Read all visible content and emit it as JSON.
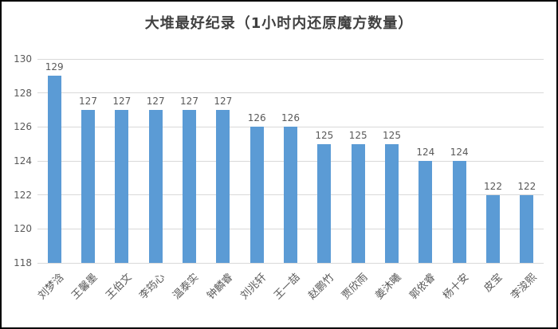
{
  "window": {
    "kind": "chart-screenshot"
  },
  "colors": {
    "bar": "#5b9bd5",
    "gridline": "#d9d9d9",
    "axis_text": "#595959",
    "title_text": "#404040",
    "frame_border": "#000000",
    "background": "#ffffff"
  },
  "chart_data": {
    "type": "bar",
    "title": "大堆最好纪录（1小时内还原魔方数量）",
    "categories": [
      "刘梦浛",
      "王馨墨",
      "王伯文",
      "李筠心",
      "温泰实",
      "钟麟睿",
      "刘兆轩",
      "王一喆",
      "赵鹏竹",
      "贾欣雨",
      "姜沐曦",
      "郭依睿",
      "杨十安",
      "皮宝",
      "李浚熙"
    ],
    "values": [
      129,
      127,
      127,
      127,
      127,
      127,
      126,
      126,
      125,
      125,
      125,
      124,
      124,
      122,
      122
    ],
    "data_labels": [
      "129",
      "127",
      "127",
      "127",
      "127",
      "127",
      "126",
      "126",
      "125",
      "125",
      "125",
      "124",
      "124",
      "122",
      "122"
    ],
    "ytick_labels": [
      "118",
      "120",
      "122",
      "124",
      "126",
      "128",
      "130"
    ],
    "xlabel": "",
    "ylabel": "",
    "ylim": [
      118,
      130
    ],
    "ytick_step": 2,
    "grid": true,
    "legend": false,
    "category_label_rotation_deg": 45
  }
}
